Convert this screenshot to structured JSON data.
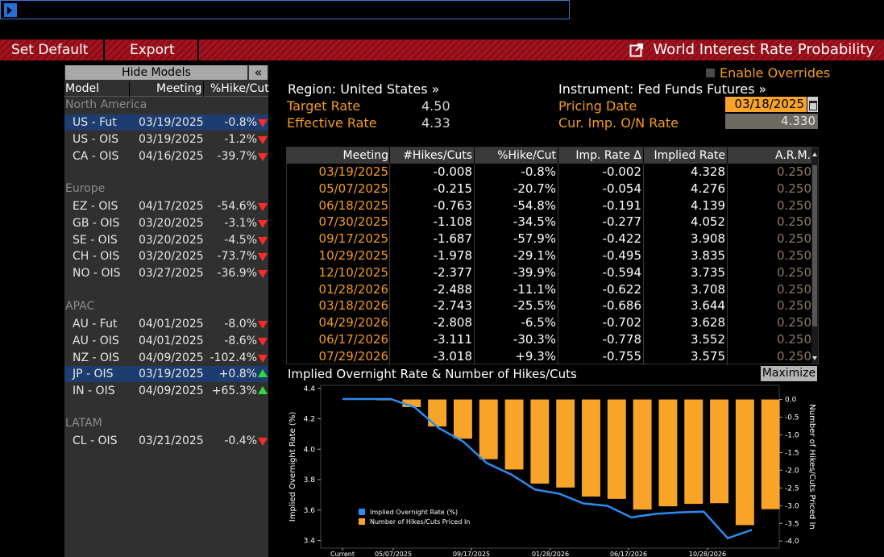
{
  "toolbar": {
    "set_default": "Set Default",
    "export": "Export",
    "title": "World Interest Rate Probability"
  },
  "left": {
    "hide_models": "Hide Models",
    "collapse": "«",
    "headers": {
      "model": "Model",
      "meeting": "Meeting",
      "hike": "%Hike/Cut"
    },
    "groups": [
      {
        "name": "North America",
        "rows": [
          {
            "model": "US - Fut",
            "meeting": "03/19/2025",
            "pct": "-0.8%",
            "dir": "down",
            "selected": true
          },
          {
            "model": "US - OIS",
            "meeting": "03/19/2025",
            "pct": "-1.2%",
            "dir": "down"
          },
          {
            "model": "CA - OIS",
            "meeting": "04/16/2025",
            "pct": "-39.7%",
            "dir": "down"
          }
        ]
      },
      {
        "name": "Europe",
        "rows": [
          {
            "model": "EZ - OIS",
            "meeting": "04/17/2025",
            "pct": "-54.6%",
            "dir": "down"
          },
          {
            "model": "GB - OIS",
            "meeting": "03/20/2025",
            "pct": "-3.1%",
            "dir": "down"
          },
          {
            "model": "SE - OIS",
            "meeting": "03/20/2025",
            "pct": "-4.5%",
            "dir": "down"
          },
          {
            "model": "CH - OIS",
            "meeting": "03/20/2025",
            "pct": "-73.7%",
            "dir": "down"
          },
          {
            "model": "NO - OIS",
            "meeting": "03/27/2025",
            "pct": "-36.9%",
            "dir": "down"
          }
        ]
      },
      {
        "name": "APAC",
        "rows": [
          {
            "model": "AU - Fut",
            "meeting": "04/01/2025",
            "pct": "-8.0%",
            "dir": "down"
          },
          {
            "model": "AU - OIS",
            "meeting": "04/01/2025",
            "pct": "-8.6%",
            "dir": "down"
          },
          {
            "model": "NZ - OIS",
            "meeting": "04/09/2025",
            "pct": "-102.4%",
            "dir": "down"
          },
          {
            "model": "JP - OIS",
            "meeting": "03/19/2025",
            "pct": "+0.8%",
            "dir": "up",
            "selected": true
          },
          {
            "model": "IN - OIS",
            "meeting": "04/09/2025",
            "pct": "+65.3%",
            "dir": "up"
          }
        ]
      },
      {
        "name": "LATAM",
        "rows": [
          {
            "model": "CL - OIS",
            "meeting": "03/21/2025",
            "pct": "-0.4%",
            "dir": "down"
          }
        ]
      }
    ]
  },
  "header": {
    "enable_overrides": "Enable Overrides",
    "region": "Region: United States »",
    "target_rate_label": "Target Rate",
    "target_rate": "4.50",
    "effective_rate_label": "Effective Rate",
    "effective_rate": "4.33",
    "instrument": "Instrument: Fed Funds Futures »",
    "pricing_date_label": "Pricing Date",
    "pricing_date": "03/18/2025",
    "imp_rate_label": "Cur. Imp. O/N Rate",
    "imp_rate": "4.330"
  },
  "table": {
    "columns": [
      "Meeting",
      "#Hikes/Cuts",
      "%Hike/Cut",
      "Imp. Rate Δ",
      "Implied Rate",
      "A.R.M."
    ],
    "rows": [
      [
        "03/19/2025",
        "-0.008",
        "-0.8%",
        "-0.002",
        "4.328",
        "0.250"
      ],
      [
        "05/07/2025",
        "-0.215",
        "-20.7%",
        "-0.054",
        "4.276",
        "0.250"
      ],
      [
        "06/18/2025",
        "-0.763",
        "-54.8%",
        "-0.191",
        "4.139",
        "0.250"
      ],
      [
        "07/30/2025",
        "-1.108",
        "-34.5%",
        "-0.277",
        "4.052",
        "0.250"
      ],
      [
        "09/17/2025",
        "-1.687",
        "-57.9%",
        "-0.422",
        "3.908",
        "0.250"
      ],
      [
        "10/29/2025",
        "-1.978",
        "-29.1%",
        "-0.495",
        "3.835",
        "0.250"
      ],
      [
        "12/10/2025",
        "-2.377",
        "-39.9%",
        "-0.594",
        "3.735",
        "0.250"
      ],
      [
        "01/28/2026",
        "-2.488",
        "-11.1%",
        "-0.622",
        "3.708",
        "0.250"
      ],
      [
        "03/18/2026",
        "-2.743",
        "-25.5%",
        "-0.686",
        "3.644",
        "0.250"
      ],
      [
        "04/29/2026",
        "-2.808",
        "-6.5%",
        "-0.702",
        "3.628",
        "0.250"
      ],
      [
        "06/17/2026",
        "-3.111",
        "-30.3%",
        "-0.778",
        "3.552",
        "0.250"
      ],
      [
        "07/29/2026",
        "-3.018",
        "+9.3%",
        "-0.755",
        "3.575",
        "0.250"
      ]
    ]
  },
  "chart": {
    "title": "Implied Overnight Rate & Number of Hikes/Cuts",
    "maximize": "Maximize"
  },
  "chart_data": {
    "type": "bar",
    "ylabel": "Implied Overnight Rate (%)",
    "y2label": "Number of Hikes/Cuts Priced In",
    "ylim": [
      3.35,
      4.42
    ],
    "y2lim": [
      -4.2,
      0.4
    ],
    "yticks": [
      "3.4",
      "3.6",
      "3.8",
      "4.0",
      "4.2",
      "4.4"
    ],
    "y2ticks": [
      "0.0",
      "-0.5",
      "-1.0",
      "-1.5",
      "-2.0",
      "-2.5",
      "-3.0",
      "-3.5",
      "-4.0"
    ],
    "xticks": [
      "Current",
      "05/07/2025",
      "09/17/2025",
      "01/28/2026",
      "06/17/2026",
      "10/28/2026"
    ],
    "legend": [
      "Implied Overnight Rate (%)",
      "Number of Hikes/Cuts Priced In"
    ],
    "bar_color": "#f7a428",
    "line_color": "#2b8cf0",
    "hikes": [
      -0.008,
      -0.215,
      -0.763,
      -1.108,
      -1.687,
      -1.978,
      -2.377,
      -2.488,
      -2.743,
      -2.808,
      -3.111,
      -3.018,
      -2.95,
      -2.93,
      -3.55,
      -3.1
    ],
    "rate": [
      4.33,
      4.33,
      4.33,
      4.276,
      4.139,
      4.052,
      3.908,
      3.835,
      3.735,
      3.708,
      3.644,
      3.628,
      3.552,
      3.575,
      3.585,
      3.59,
      3.415,
      3.47
    ]
  }
}
